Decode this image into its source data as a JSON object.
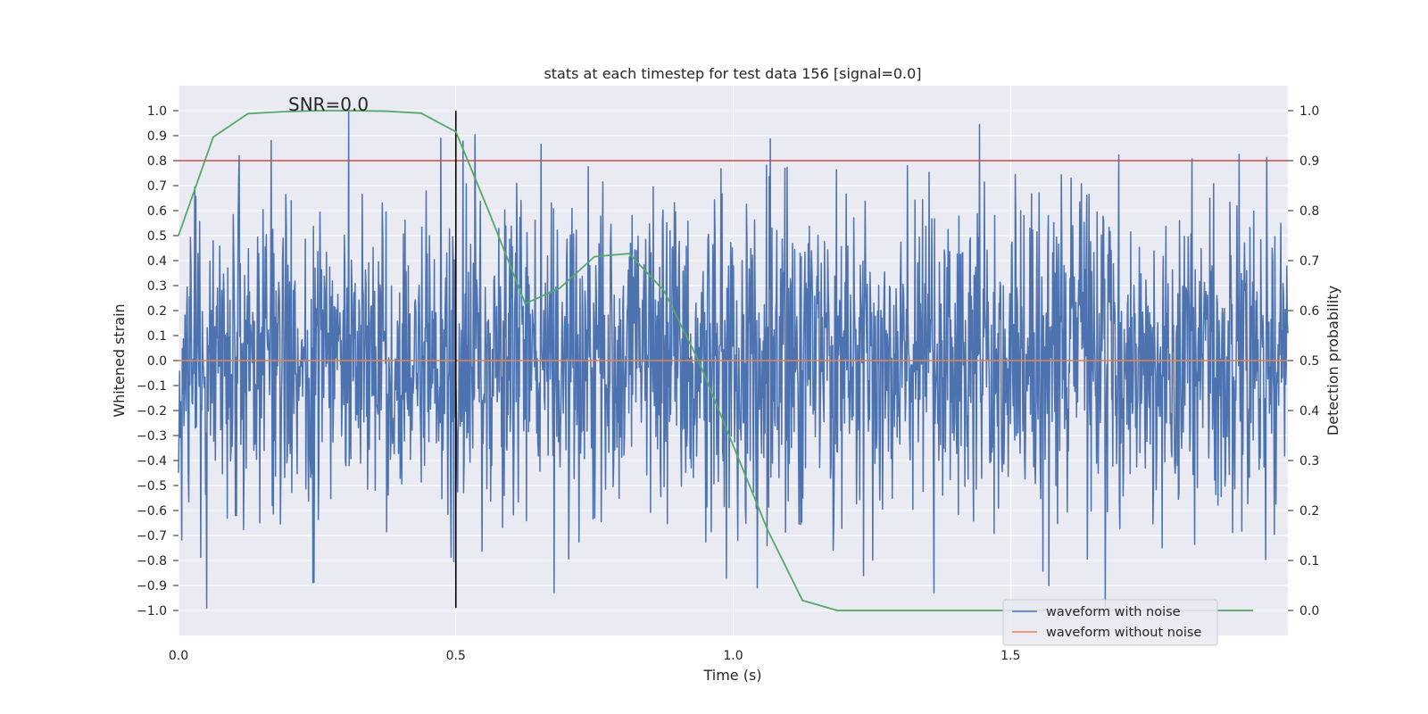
{
  "chart_data": {
    "type": "line",
    "title": "stats at each timestep for test data 156 [signal=0.0]",
    "xlabel": "Time (s)",
    "ylabel_left": "Whitened strain",
    "ylabel_right": "Detection probability",
    "xlim": [
      0.0,
      2.0
    ],
    "ylim_left": [
      -1.1,
      1.1
    ],
    "ylim_right": [
      -0.05,
      1.05
    ],
    "x_ticks": [
      0.0,
      0.5,
      1.0,
      1.5
    ],
    "x_tick_labels": [
      "0.0",
      "0.5",
      "1.0",
      "1.5"
    ],
    "y_left_ticks": [
      1.0,
      0.9,
      0.8,
      0.7,
      0.6,
      0.5,
      0.4,
      0.3,
      0.2,
      0.1,
      0.0,
      -0.1,
      -0.2,
      -0.3,
      -0.4,
      -0.5,
      -0.6,
      -0.7,
      -0.8,
      -0.9,
      -1.0
    ],
    "y_left_tick_labels": [
      "1.0",
      "0.9",
      "0.8",
      "0.7",
      "0.6",
      "0.5",
      "0.4",
      "0.3",
      "0.2",
      "0.1",
      "0.0",
      "−0.1",
      "−0.2",
      "−0.3",
      "−0.4",
      "−0.5",
      "−0.6",
      "−0.7",
      "−0.8",
      "−0.9",
      "−1.0"
    ],
    "y_right_ticks": [
      1.0,
      0.9,
      0.8,
      0.7,
      0.6,
      0.5,
      0.4,
      0.3,
      0.2,
      0.1,
      0.0
    ],
    "y_right_tick_labels": [
      "1.0",
      "0.9",
      "0.8",
      "0.7",
      "0.6",
      "0.5",
      "0.4",
      "0.3",
      "0.2",
      "0.1",
      "0.0"
    ],
    "annotation": "SNR=0.0",
    "annotation_at": [
      0.2,
      1.02
    ],
    "series": [
      {
        "name": "waveform with noise",
        "axis": "left",
        "color": "#4c72b0",
        "kind": "noise",
        "n_samples": 2048,
        "seed": 156,
        "std": 0.32,
        "clip": [
          -0.99,
          1.0
        ]
      },
      {
        "name": "waveform without noise",
        "axis": "left",
        "color": "#dd8452",
        "x": [
          0.0,
          2.0
        ],
        "y": [
          0.0,
          0.0
        ]
      },
      {
        "name": "detection probability",
        "axis": "right",
        "color": "#55a868",
        "x": [
          0.0,
          0.0625,
          0.125,
          0.1875,
          0.25,
          0.3125,
          0.375,
          0.4375,
          0.5,
          0.5625,
          0.625,
          0.6875,
          0.75,
          0.8125,
          0.875,
          0.9375,
          1.0,
          1.0625,
          1.125,
          1.1875,
          1.25,
          1.3125,
          1.375,
          1.4375,
          1.5,
          1.5625,
          1.625,
          1.6875,
          1.75,
          1.8125,
          1.875,
          1.9375
        ],
        "y": [
          0.75,
          0.947,
          0.994,
          0.998,
          1.0,
          1.0,
          0.999,
          0.995,
          0.958,
          0.79,
          0.614,
          0.645,
          0.708,
          0.714,
          0.64,
          0.5,
          0.33,
          0.16,
          0.02,
          0.0,
          0.0,
          0.0,
          0.0,
          0.0,
          0.0,
          0.0,
          0.0,
          0.0,
          0.0,
          0.0,
          0.0,
          0.0
        ]
      }
    ],
    "threshold": {
      "axis": "right",
      "value": 0.9,
      "color": "#c44e52"
    },
    "marker_line": {
      "x": 0.5,
      "y_range": [
        -0.99,
        1.0
      ],
      "color": "#000000"
    },
    "legend": {
      "placement": "lower-right",
      "entries": [
        {
          "label": "waveform with noise",
          "color": "#4c72b0"
        },
        {
          "label": "waveform without noise",
          "color": "#dd8452"
        }
      ]
    },
    "colors": {
      "plot_background": "#eaeaf2",
      "grid": "#ffffff"
    }
  }
}
